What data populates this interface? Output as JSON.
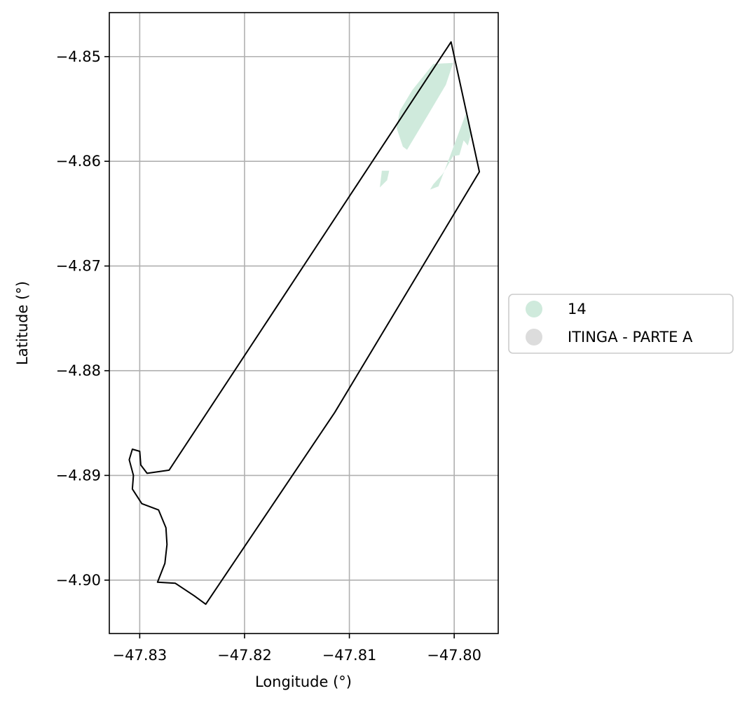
{
  "chart_data": {
    "type": "map",
    "xlabel": "Longitude (°)",
    "ylabel": "Latitude (°)",
    "xlim": [
      -47.8329,
      -47.7958
    ],
    "ylim": [
      -4.9051,
      -4.8458
    ],
    "grid": true,
    "x_ticks": [
      -47.83,
      -47.82,
      -47.81,
      -47.8
    ],
    "x_tick_labels": [
      "−47.83",
      "−47.82",
      "−47.81",
      "−47.80"
    ],
    "y_ticks": [
      -4.85,
      -4.86,
      -4.87,
      -4.88,
      -4.89,
      -4.9
    ],
    "y_tick_labels": [
      "−4.85",
      "−4.86",
      "−4.87",
      "−4.88",
      "−4.89",
      "−4.90"
    ],
    "legend": {
      "placement": "right",
      "entries": [
        {
          "label": "14",
          "color": "#cfeadc"
        },
        {
          "label": "ITINGA - PARTE A",
          "color": "#dcdcdc"
        }
      ]
    },
    "boundary": {
      "name": "ITINGA - PARTE A",
      "stroke": "#000000",
      "coordinates": [
        [
          -47.8003,
          -4.8486
        ],
        [
          -47.7976,
          -4.861
        ],
        [
          -47.8114,
          -4.884
        ],
        [
          -47.8237,
          -4.9023
        ],
        [
          -47.8248,
          -4.9015
        ],
        [
          -47.8266,
          -4.9003
        ],
        [
          -47.8283,
          -4.9002
        ],
        [
          -47.8276,
          -4.8984
        ],
        [
          -47.8274,
          -4.8966
        ],
        [
          -47.8275,
          -4.895
        ],
        [
          -47.8282,
          -4.8933
        ],
        [
          -47.8298,
          -4.8927
        ],
        [
          -47.8307,
          -4.8913
        ],
        [
          -47.8306,
          -4.89
        ],
        [
          -47.831,
          -4.8885
        ],
        [
          -47.8307,
          -4.8875
        ],
        [
          -47.83,
          -4.8877
        ],
        [
          -47.8299,
          -4.889
        ],
        [
          -47.8293,
          -4.8898
        ],
        [
          -47.8272,
          -4.8895
        ],
        [
          -47.8003,
          -4.8486
        ]
      ]
    },
    "areas": [
      {
        "class": "14",
        "color": "#cfeadc",
        "polygons": [
          [
            [
              -47.8001,
              -4.8506
            ],
            [
              -47.802,
              -4.8507
            ],
            [
              -47.804,
              -4.8532
            ],
            [
              -47.8052,
              -4.8552
            ],
            [
              -47.8055,
              -4.8568
            ],
            [
              -47.8049,
              -4.8586
            ],
            [
              -47.8045,
              -4.8589
            ],
            [
              -47.8024,
              -4.8554
            ],
            [
              -47.8008,
              -4.8527
            ]
          ],
          [
            [
              -47.7989,
              -4.8555
            ],
            [
              -47.7984,
              -4.8574
            ],
            [
              -47.7987,
              -4.8585
            ],
            [
              -47.7991,
              -4.858
            ],
            [
              -47.7995,
              -4.8594
            ],
            [
              -47.8001,
              -4.8595
            ],
            [
              -47.8011,
              -4.8612
            ],
            [
              -47.802,
              -4.8622
            ],
            [
              -47.8023,
              -4.8627
            ],
            [
              -47.8015,
              -4.8624
            ],
            [
              -47.8004,
              -4.8595
            ]
          ],
          [
            [
              -47.8062,
              -4.8609
            ],
            [
              -47.8069,
              -4.8609
            ],
            [
              -47.8071,
              -4.8625
            ],
            [
              -47.8064,
              -4.8618
            ]
          ]
        ]
      }
    ]
  }
}
